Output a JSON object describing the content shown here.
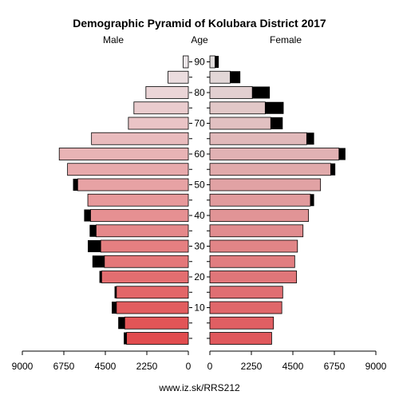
{
  "chart_data": {
    "type": "population-pyramid",
    "title": "Demographic Pyramid of Kolubara District 2017",
    "left_label": "Male",
    "center_label": "Age",
    "right_label": "Female",
    "footer": "www.iz.sk/RRS212",
    "age_groups": [
      "0-4",
      "5-9",
      "10-14",
      "15-19",
      "20-24",
      "25-29",
      "30-34",
      "35-39",
      "40-44",
      "45-49",
      "50-54",
      "55-59",
      "60-64",
      "65-69",
      "70-74",
      "75-79",
      "80-84",
      "85-89",
      "90+"
    ],
    "age_tick_labels": [
      "10",
      "20",
      "30",
      "40",
      "50",
      "60",
      "70",
      "80",
      "90"
    ],
    "age_tick_groups": [
      2,
      4,
      6,
      8,
      10,
      12,
      14,
      16,
      18
    ],
    "x_ticks_male": [
      "9000",
      "6750",
      "4500",
      "2250",
      "0"
    ],
    "x_ticks_female": [
      "0",
      "2250",
      "4500",
      "6750",
      "9000"
    ],
    "x_max": 9000,
    "male_base": [
      3350,
      3450,
      3900,
      3900,
      4700,
      4550,
      4750,
      5000,
      5300,
      5450,
      6000,
      6550,
      7000,
      5250,
      3250,
      2950,
      2300,
      1100,
      280
    ],
    "male_extra": [
      150,
      350,
      250,
      100,
      120,
      650,
      700,
      350,
      350,
      0,
      250,
      0,
      0,
      0,
      0,
      0,
      0,
      0,
      0
    ],
    "female_base": [
      3350,
      3450,
      3900,
      3950,
      4700,
      4600,
      4750,
      5050,
      5350,
      5450,
      6000,
      6550,
      7000,
      5250,
      3300,
      3000,
      2300,
      1100,
      280
    ],
    "female_extra": [
      0,
      0,
      0,
      0,
      0,
      0,
      0,
      0,
      0,
      200,
      0,
      250,
      350,
      400,
      650,
      1000,
      950,
      550,
      200
    ],
    "colors": {
      "male_young": "#e14c4e",
      "male_old": "#ece6e8",
      "female_young": "#e0585c",
      "female_old": "#e2dede",
      "extra": "#000000",
      "axis": "#000000"
    }
  }
}
